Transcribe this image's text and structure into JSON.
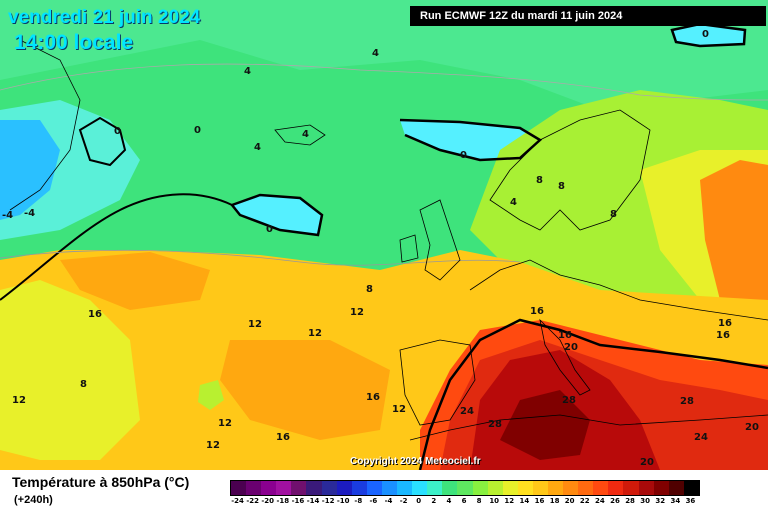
{
  "header": {
    "date": "vendredi 21 juin 2024",
    "time": "14:00 locale",
    "run": "Run ECMWF 12Z du mardi 11 juin 2024"
  },
  "copyright": "Copyright 2024 Meteociel.fr",
  "legend": {
    "title": "Température à 850hPa (°C)",
    "subtitle": "(+240h)",
    "ticks": [
      "-24",
      "-22",
      "-20",
      "-18",
      "-16",
      "-14",
      "-12",
      "-10",
      "-8",
      "-6",
      "-4",
      "-2",
      "0",
      "2",
      "4",
      "6",
      "8",
      "10",
      "12",
      "14",
      "16",
      "18",
      "20",
      "22",
      "24",
      "26",
      "28",
      "30",
      "32",
      "34",
      "36"
    ],
    "colors": [
      "#4b0050",
      "#6a0070",
      "#8a0090",
      "#a010a0",
      "#70106e",
      "#3a1a7a",
      "#2a2a9a",
      "#1c1cc0",
      "#1a3ce0",
      "#1a64ff",
      "#1a90ff",
      "#1ab8ff",
      "#2ae0ff",
      "#3cf0c8",
      "#3ee37c",
      "#5ee860",
      "#88f040",
      "#b8f030",
      "#e8f02a",
      "#ffe020",
      "#ffc818",
      "#ffa810",
      "#ff8a10",
      "#ff6a10",
      "#ff4a10",
      "#f02a10",
      "#d01a0a",
      "#a80a0a",
      "#800000",
      "#500000",
      "#000000"
    ]
  },
  "map_labels": [
    "4",
    "4",
    "0",
    "0",
    "4",
    "4",
    "0",
    "0",
    "-4",
    "-4",
    "0",
    "8",
    "8",
    "8",
    "4",
    "16",
    "12",
    "12",
    "12",
    "8",
    "16",
    "20",
    "16",
    "16",
    "16",
    "28",
    "28",
    "28",
    "24",
    "24",
    "16",
    "12",
    "8",
    "12",
    "12",
    "16",
    "12",
    "20",
    "20"
  ]
}
